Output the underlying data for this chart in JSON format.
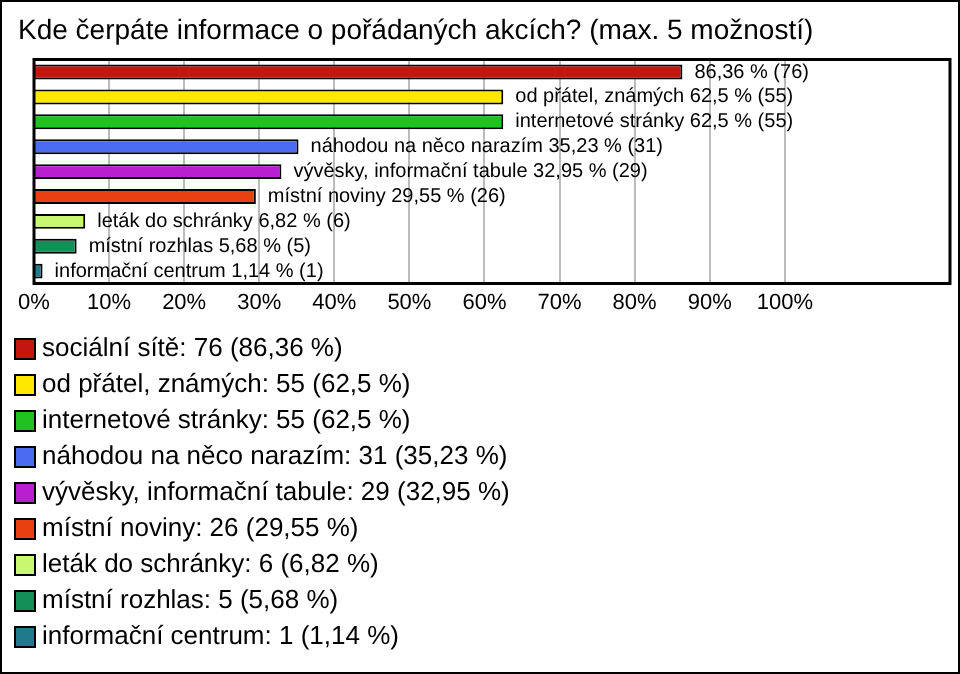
{
  "chart_data": {
    "type": "bar",
    "orientation": "horizontal",
    "stacked": true,
    "title": "Kde čerpáte informace o pořádaných akcích? (max. 5 možností)",
    "categories": [
      null,
      null,
      null,
      null,
      null,
      null,
      null,
      null,
      null
    ],
    "series": [
      {
        "name": "sociální sítě: 76 (86,36 %)",
        "color": "#c4160e",
        "values": [
          86.36,
          null,
          null,
          null,
          null,
          null,
          null,
          null,
          null
        ],
        "value_labels": [
          "86,36 % (76)",
          null,
          null,
          null,
          null,
          null,
          null,
          null,
          null
        ]
      },
      {
        "name": "od přátel, známých: 55 (62,5 %)",
        "color": "#ffe800",
        "values": [
          null,
          62.5,
          null,
          null,
          null,
          null,
          null,
          null,
          null
        ],
        "value_labels": [
          null,
          "od přátel, známých 62,5 % (55)",
          null,
          null,
          null,
          null,
          null,
          null,
          null
        ]
      },
      {
        "name": "internetové stránky: 55 (62,5 %)",
        "color": "#1fc21f",
        "values": [
          null,
          null,
          62.5,
          null,
          null,
          null,
          null,
          null,
          null
        ],
        "value_labels": [
          null,
          null,
          "internetové stránky 62,5 % (55)",
          null,
          null,
          null,
          null,
          null,
          null
        ]
      },
      {
        "name": "náhodou na něco narazím: 31 (35,23 %)",
        "color": "#4a6cf0",
        "values": [
          null,
          null,
          null,
          35.23,
          null,
          null,
          null,
          null,
          null
        ],
        "value_labels": [
          null,
          null,
          null,
          "náhodou na něco narazím 35,23 % (31)",
          null,
          null,
          null,
          null,
          null
        ]
      },
      {
        "name": "vývěsky, informační tabule: 29 (32,95 %)",
        "color": "#b81fd0",
        "values": [
          null,
          null,
          null,
          null,
          32.95,
          null,
          null,
          null,
          null
        ],
        "value_labels": [
          null,
          null,
          null,
          null,
          "vývěsky, informační tabule 32,95 % (29)",
          null,
          null,
          null,
          null
        ]
      },
      {
        "name": "místní noviny: 26 (29,55 %)",
        "color": "#e84010",
        "values": [
          null,
          null,
          null,
          null,
          null,
          29.55,
          null,
          null,
          null
        ],
        "value_labels": [
          null,
          null,
          null,
          null,
          null,
          "místní noviny 29,55 % (26)",
          null,
          null,
          null
        ]
      },
      {
        "name": "leták do schránky: 6 (6,82 %)",
        "color": "#c8f870",
        "values": [
          null,
          null,
          null,
          null,
          null,
          null,
          6.82,
          null,
          null
        ],
        "value_labels": [
          null,
          null,
          null,
          null,
          null,
          null,
          "leták do schránky 6,82 % (6)",
          null,
          null
        ]
      },
      {
        "name": "místní rozhlas: 5 (5,68 %)",
        "color": "#138f58",
        "values": [
          null,
          null,
          null,
          null,
          null,
          null,
          null,
          5.68,
          null
        ],
        "value_labels": [
          null,
          null,
          null,
          null,
          null,
          null,
          null,
          "místní rozhlas 5,68 % (5)",
          null
        ]
      },
      {
        "name": "informační centrum: 1 (1,14 %)",
        "color": "#1f7a8c",
        "values": [
          null,
          null,
          null,
          null,
          null,
          null,
          null,
          null,
          1.14
        ],
        "value_labels": [
          null,
          null,
          null,
          null,
          null,
          null,
          null,
          null,
          "informační centrum 1,14 % (1)"
        ]
      }
    ],
    "xlim": [
      0,
      122
    ],
    "xticks": [
      {
        "value": 0,
        "label": "0%"
      },
      {
        "value": 10,
        "label": "10%"
      },
      {
        "value": 20,
        "label": "20%"
      },
      {
        "value": 30,
        "label": "30%"
      },
      {
        "value": 40,
        "label": "40%"
      },
      {
        "value": 50,
        "label": "50%"
      },
      {
        "value": 60,
        "label": "60%"
      },
      {
        "value": 70,
        "label": "70%"
      },
      {
        "value": 80,
        "label": "80%"
      },
      {
        "value": 90,
        "label": "90%"
      },
      {
        "value": 100,
        "label": "100%"
      }
    ],
    "grid": "x",
    "legend": "bottom"
  }
}
